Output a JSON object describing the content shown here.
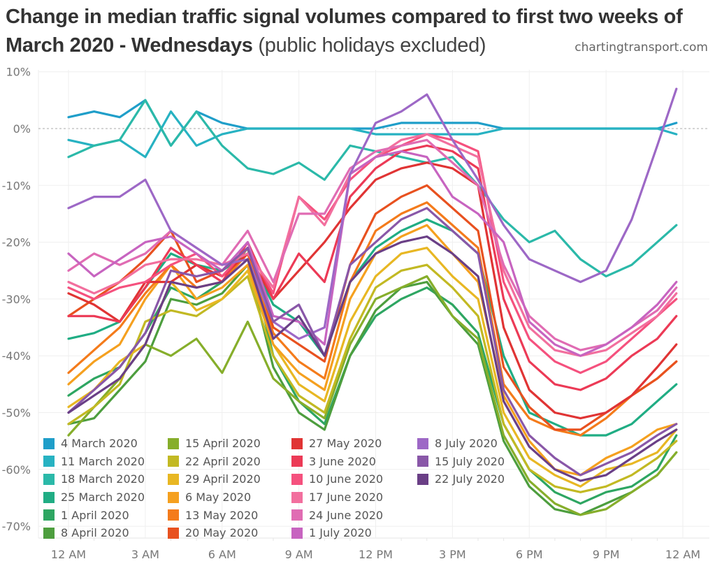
{
  "title": {
    "bold": "Change in median traffic signal volumes compared to first two weeks of March 2020 - Wednesdays",
    "light": "(public holidays excluded)"
  },
  "source": "chartingtransport.com",
  "chart_data": {
    "type": "line",
    "title": "Change in median traffic signal volumes compared to first two weeks of March 2020 - Wednesdays (public holidays excluded)",
    "xlabel": "",
    "ylabel": "",
    "x_ticks": [
      "12 AM",
      "3 AM",
      "6 AM",
      "9 AM",
      "12 PM",
      "3 PM",
      "6 PM",
      "9 PM",
      "12 AM"
    ],
    "x_unit": "hours since midnight",
    "x": [
      0,
      1,
      2,
      3,
      4,
      5,
      6,
      7,
      8,
      9,
      10,
      11,
      12,
      13,
      14,
      15,
      16,
      17,
      18,
      19,
      20,
      21,
      22,
      23,
      23.75
    ],
    "y_ticks": [
      "10%",
      "0%",
      "-10%",
      "-20%",
      "-30%",
      "-40%",
      "-50%",
      "-60%",
      "-70%"
    ],
    "ylim": [
      -72,
      10
    ],
    "grid": true,
    "zero_line": "dashed",
    "legend_position": "bottom-left",
    "series": [
      {
        "name": "4 March 2020",
        "color": "#1f9ec9",
        "values": [
          2,
          3,
          2,
          5,
          -3,
          3,
          1,
          0,
          0,
          0,
          0,
          0,
          0,
          1,
          1,
          1,
          1,
          0,
          0,
          0,
          0,
          0,
          0,
          0,
          1
        ]
      },
      {
        "name": "11 March 2020",
        "color": "#27b2c2",
        "values": [
          -2,
          -3,
          -2,
          -5,
          3,
          -3,
          -1,
          0,
          0,
          0,
          0,
          0,
          -1,
          -1,
          -1,
          -1,
          -1,
          0,
          0,
          0,
          0,
          0,
          0,
          0,
          -1
        ]
      },
      {
        "name": "18 March 2020",
        "color": "#2bb9a9",
        "values": [
          -5,
          -3,
          -2,
          5,
          -3,
          3,
          -3,
          -7,
          -8,
          -6,
          -9,
          -3,
          -4,
          -5,
          -6,
          -5,
          -10,
          -16,
          -20,
          -18,
          -23,
          -26,
          -24,
          -20,
          -17
        ]
      },
      {
        "name": "25 March 2020",
        "color": "#20ad84",
        "values": [
          -37,
          -36,
          -34,
          -28,
          -22,
          -24,
          -25,
          -22,
          -31,
          -34,
          -40,
          -27,
          -21,
          -18,
          -16,
          -18,
          -22,
          -40,
          -50,
          -52,
          -54,
          -54,
          -52,
          -48,
          -45
        ]
      },
      {
        "name": "1 April 2020",
        "color": "#2ea662",
        "values": [
          -47,
          -44,
          -42,
          -36,
          -28,
          -30,
          -27,
          -21,
          -40,
          -48,
          -52,
          -40,
          -33,
          -30,
          -28,
          -31,
          -36,
          -52,
          -60,
          -64,
          -66,
          -64,
          -63,
          -60,
          -54
        ]
      },
      {
        "name": "8 April 2020",
        "color": "#4d9e3e",
        "values": [
          -52,
          -51,
          -46,
          -41,
          -30,
          -31,
          -29,
          -24,
          -42,
          -50,
          -53,
          -40,
          -32,
          -28,
          -27,
          -33,
          -38,
          -55,
          -63,
          -67,
          -68,
          -66,
          -64,
          -61,
          -57
        ]
      },
      {
        "name": "15 April 2020",
        "color": "#86ae2b",
        "values": [
          -54,
          -49,
          -44,
          -38,
          -40,
          -37,
          -43,
          -34,
          -44,
          -48,
          -51,
          -38,
          -30,
          -28,
          -26,
          -33,
          -37,
          -54,
          -62,
          -66,
          -68,
          -67,
          -64,
          -61,
          -57
        ]
      },
      {
        "name": "22 April 2020",
        "color": "#c2b923",
        "values": [
          -52,
          -49,
          -45,
          -34,
          -32,
          -33,
          -30,
          -26,
          -40,
          -47,
          -50,
          -37,
          -28,
          -25,
          -24,
          -28,
          -33,
          -52,
          -60,
          -63,
          -64,
          -63,
          -61,
          -58,
          -55
        ]
      },
      {
        "name": "29 April 2020",
        "color": "#e8b723",
        "values": [
          -49,
          -46,
          -41,
          -38,
          -27,
          -32,
          -30,
          -25,
          -38,
          -45,
          -48,
          -34,
          -26,
          -22,
          -21,
          -26,
          -30,
          -50,
          -58,
          -61,
          -63,
          -60,
          -59,
          -57,
          -53
        ]
      },
      {
        "name": "6 May 2020",
        "color": "#f5a01f",
        "values": [
          -45,
          -41,
          -38,
          -30,
          -24,
          -30,
          -28,
          -24,
          -38,
          -43,
          -46,
          -30,
          -22,
          -19,
          -17,
          -22,
          -27,
          -47,
          -55,
          -60,
          -61,
          -58,
          -56,
          -53,
          -52
        ]
      },
      {
        "name": "13 May 2020",
        "color": "#f47b1b",
        "values": [
          -43,
          -39,
          -35,
          -29,
          -24,
          -28,
          -27,
          -22,
          -36,
          -41,
          -44,
          -27,
          -18,
          -15,
          -13,
          -17,
          -21,
          -45,
          -51,
          -53,
          -54,
          -51,
          -47,
          -44,
          -41
        ]
      },
      {
        "name": "20 May 2020",
        "color": "#e8511f",
        "values": [
          -33,
          -30,
          -27,
          -23,
          -18,
          -27,
          -25,
          -21,
          -35,
          -38,
          -41,
          -24,
          -15,
          -12,
          -10,
          -14,
          -18,
          -42,
          -49,
          -53,
          -53,
          -50,
          -47,
          -44,
          -41
        ]
      },
      {
        "name": "27 May 2020",
        "color": "#e03434",
        "values": [
          -29,
          -31,
          -34,
          -27,
          -27,
          -24,
          -26,
          -22,
          -30,
          -25,
          -20,
          -14,
          -9,
          -7,
          -6,
          -7,
          -10,
          -35,
          -46,
          -50,
          -51,
          -50,
          -47,
          -42,
          -38
        ]
      },
      {
        "name": "3 June 2020",
        "color": "#ec3a56",
        "values": [
          -33,
          -33,
          -34,
          -28,
          -21,
          -24,
          -27,
          -20,
          -30,
          -22,
          -27,
          -12,
          -7,
          -4,
          -3,
          -4,
          -7,
          -30,
          -41,
          -45,
          -46,
          -44,
          -40,
          -37,
          -33
        ]
      },
      {
        "name": "10 June 2020",
        "color": "#f5517e",
        "values": [
          -28,
          -30,
          -28,
          -27,
          -24,
          -22,
          -26,
          -21,
          -29,
          -12,
          -16,
          -9,
          -5,
          -3,
          -1,
          -2,
          -4,
          -27,
          -37,
          -41,
          -43,
          -41,
          -37,
          -33,
          -30
        ]
      },
      {
        "name": "17 June 2020",
        "color": "#f26f9e",
        "values": [
          -27,
          -29,
          -27,
          -24,
          -23,
          -23,
          -24,
          -22,
          -28,
          -12,
          -17,
          -8,
          -5,
          -2,
          -1,
          -3,
          -5,
          -25,
          -35,
          -39,
          -40,
          -39,
          -36,
          -33,
          -29
        ]
      },
      {
        "name": "24 June 2020",
        "color": "#e06cb3",
        "values": [
          -25,
          -22,
          -24,
          -22,
          -18,
          -21,
          -24,
          -18,
          -27,
          -15,
          -15,
          -7,
          -4,
          -3,
          -2,
          -6,
          -10,
          -24,
          -33,
          -37,
          -39,
          -38,
          -35,
          -32,
          -28
        ]
      },
      {
        "name": "1 July 2020",
        "color": "#c764c0",
        "values": [
          -22,
          -26,
          -23,
          -20,
          -19,
          -22,
          -25,
          -20,
          -33,
          -34,
          -38,
          -8,
          -5,
          -4,
          -5,
          -12,
          -15,
          -20,
          -34,
          -38,
          -40,
          -38,
          -35,
          -31,
          -27
        ]
      },
      {
        "name": "8 July 2020",
        "color": "#9d68c6",
        "values": [
          -14,
          -12,
          -12,
          -9,
          -18,
          -21,
          -24,
          -23,
          -34,
          -37,
          -35,
          -8,
          1,
          3,
          6,
          -2,
          -9,
          -17,
          -23,
          -25,
          -27,
          -25,
          -16,
          -3,
          7
        ]
      },
      {
        "name": "15 July 2020",
        "color": "#8957a8",
        "values": [
          -50,
          -46,
          -42,
          -36,
          -25,
          -26,
          -25,
          -21,
          -34,
          -31,
          -40,
          -24,
          -20,
          -16,
          -14,
          -18,
          -22,
          -46,
          -54,
          -58,
          -61,
          -59,
          -57,
          -54,
          -52
        ]
      },
      {
        "name": "22 July 2020",
        "color": "#6a3f86",
        "values": [
          -50,
          -47,
          -44,
          -38,
          -27,
          -28,
          -27,
          -23,
          -37,
          -33,
          -40,
          -27,
          -22,
          -20,
          -19,
          -22,
          -26,
          -48,
          -56,
          -60,
          -62,
          -61,
          -58,
          -55,
          -53
        ]
      }
    ]
  }
}
